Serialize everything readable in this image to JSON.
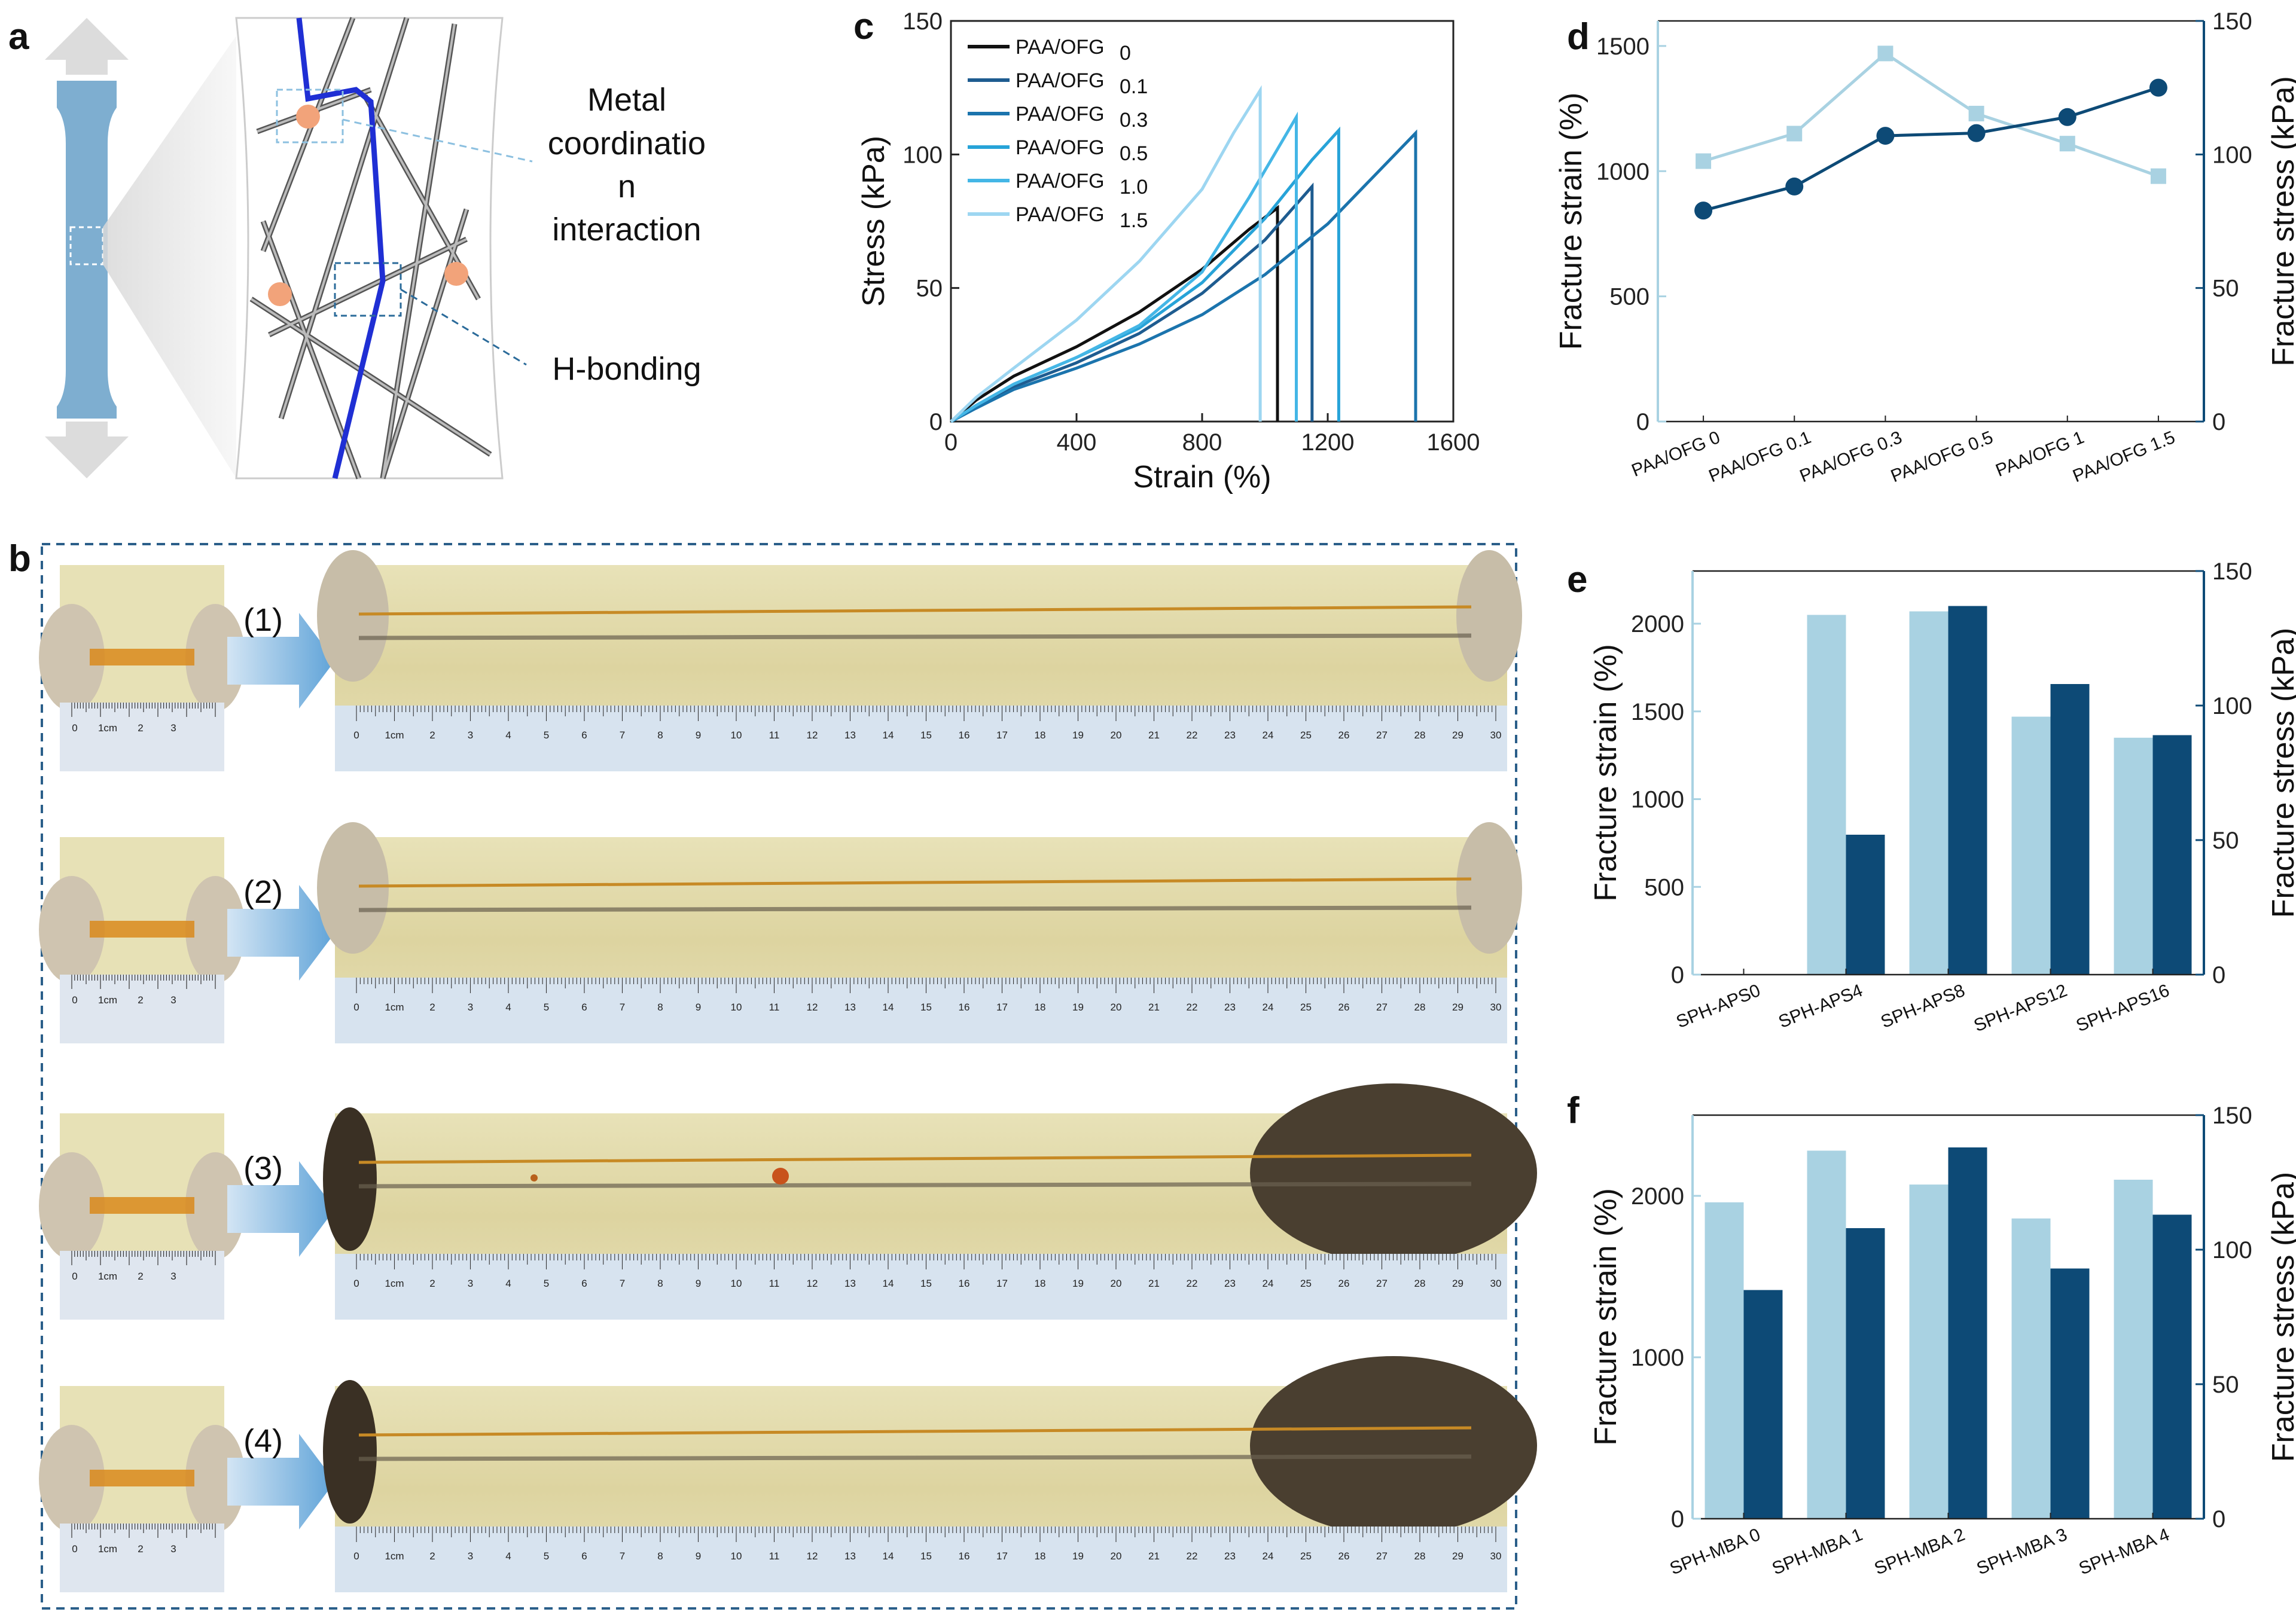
{
  "panels": {
    "a": {
      "label": "a",
      "annotation_metal": [
        "Metal",
        "coordinatio",
        "n",
        "interaction"
      ],
      "annotation_h": "H-bonding"
    },
    "b": {
      "label": "b",
      "steps": [
        "(1)",
        "(2)",
        "(3)",
        "(4)"
      ],
      "ruler_unit": "1cm",
      "ruler_small": [
        "0",
        "1cm",
        "2",
        "3"
      ],
      "ruler_big": [
        "0",
        "1cm",
        "2",
        "3",
        "4",
        "5",
        "6",
        "7",
        "8",
        "9",
        "10",
        "11",
        "12",
        "13",
        "14",
        "15",
        "16",
        "17",
        "18",
        "19",
        "20",
        "21",
        "22",
        "23",
        "24",
        "25",
        "26",
        "27",
        "28",
        "29",
        "30"
      ]
    },
    "c": {
      "label": "c"
    },
    "d": {
      "label": "d"
    },
    "e": {
      "label": "e"
    },
    "f": {
      "label": "f"
    }
  },
  "colors": {
    "light": "#a9d2e2",
    "dark": "#0d4a76",
    "black": "#111111",
    "curve_01": "#1e5c90",
    "curve_03": "#1b74ad",
    "curve_05": "#27a3d8",
    "curve_10": "#44b6e6",
    "curve_15": "#9dd6f1",
    "chain_blue": "#1f2fd4",
    "arrow_grad_start": "#d3e5f4",
    "arrow_grad_end": "#5fa3d8"
  },
  "chart_data": [
    {
      "id": "c",
      "type": "line",
      "xlabel": "Strain (%)",
      "ylabel": "Stress (kPa)",
      "xlim": [
        0,
        1600
      ],
      "ylim": [
        0,
        150
      ],
      "xticks": [
        0,
        400,
        800,
        1200,
        1600
      ],
      "yticks": [
        0,
        50,
        100,
        150
      ],
      "legend_position": "top-left",
      "series": [
        {
          "name": "PAA/OFG",
          "sub": "0",
          "color_key": "black",
          "x": [
            0,
            80,
            200,
            400,
            600,
            800,
            950,
            1040,
            1040
          ],
          "y": [
            0,
            8,
            17,
            28,
            41,
            57,
            72,
            80,
            0
          ]
        },
        {
          "name": "PAA/OFG",
          "sub": "0.1",
          "color_key": "curve_01",
          "x": [
            0,
            80,
            200,
            400,
            600,
            800,
            1000,
            1150,
            1150
          ],
          "y": [
            0,
            6,
            13,
            22,
            33,
            48,
            68,
            88,
            0
          ]
        },
        {
          "name": "PAA/OFG",
          "sub": "0.3",
          "color_key": "curve_03",
          "x": [
            0,
            80,
            200,
            400,
            600,
            800,
            1000,
            1200,
            1480,
            1480
          ],
          "y": [
            0,
            5,
            12,
            20,
            29,
            40,
            55,
            74,
            108,
            0
          ]
        },
        {
          "name": "PAA/OFG",
          "sub": "0.5",
          "color_key": "curve_05",
          "x": [
            0,
            80,
            200,
            400,
            600,
            800,
            1000,
            1150,
            1235,
            1235
          ],
          "y": [
            0,
            6,
            14,
            24,
            35,
            52,
            76,
            98,
            109,
            0
          ]
        },
        {
          "name": "PAA/OFG",
          "sub": "1.0",
          "color_key": "curve_10",
          "x": [
            0,
            80,
            200,
            400,
            600,
            800,
            950,
            1100,
            1100
          ],
          "y": [
            0,
            6,
            14,
            24,
            36,
            56,
            84,
            114,
            0
          ]
        },
        {
          "name": "PAA/OFG",
          "sub": "1.5",
          "color_key": "curve_15",
          "x": [
            0,
            80,
            200,
            400,
            600,
            800,
            900,
            985,
            985
          ],
          "y": [
            0,
            9,
            20,
            38,
            60,
            87,
            108,
            124,
            0
          ]
        }
      ]
    },
    {
      "id": "d",
      "type": "line",
      "categories": [
        "PAA/OFG 0",
        "PAA/OFG 0.1",
        "PAA/OFG 0.3",
        "PAA/OFG 0.5",
        "PAA/OFG 1",
        "PAA/OFG 1.5"
      ],
      "ylabel": "Fracture strain (%)",
      "y2label": "Fracture stress (kPa)",
      "ylim": [
        0,
        1600
      ],
      "y2lim": [
        0,
        150
      ],
      "yticks": [
        0,
        500,
        1000,
        1500
      ],
      "y2ticks": [
        0,
        50,
        100,
        150
      ],
      "series": [
        {
          "name": "Fracture strain",
          "axis": "left",
          "marker": "square",
          "color_key": "light",
          "values": [
            1040,
            1150,
            1470,
            1230,
            1110,
            980
          ]
        },
        {
          "name": "Fracture stress",
          "axis": "right",
          "marker": "circle",
          "color_key": "dark",
          "values": [
            79,
            88,
            107,
            108,
            114,
            125
          ]
        }
      ]
    },
    {
      "id": "e",
      "type": "bar",
      "categories": [
        "SPH-APS0",
        "SPH-APS4",
        "SPH-APS8",
        "SPH-APS12",
        "SPH-APS16"
      ],
      "ylabel": "Fracture strain (%)",
      "y2label": "Fracture stress (kPa)",
      "ylim": [
        0,
        2300
      ],
      "y2lim": [
        0,
        150
      ],
      "yticks": [
        0,
        500,
        1000,
        1500,
        2000
      ],
      "y2ticks": [
        0,
        50,
        100,
        150
      ],
      "series": [
        {
          "name": "Fracture strain",
          "axis": "left",
          "color_key": "light",
          "values": [
            0,
            2050,
            2070,
            1470,
            1350
          ]
        },
        {
          "name": "Fracture stress",
          "axis": "right",
          "color_key": "dark",
          "values": [
            0,
            52,
            137,
            108,
            89
          ]
        }
      ]
    },
    {
      "id": "f",
      "type": "bar",
      "categories": [
        "SPH-MBA 0",
        "SPH-MBA 1",
        "SPH-MBA 2",
        "SPH-MBA 3",
        "SPH-MBA 4"
      ],
      "ylabel": "Fracture strain (%)",
      "y2label": "Fracture stress (kPa)",
      "ylim": [
        0,
        2500
      ],
      "y2lim": [
        0,
        150
      ],
      "yticks": [
        0,
        1000,
        2000
      ],
      "y2ticks": [
        0,
        50,
        100,
        150
      ],
      "series": [
        {
          "name": "Fracture strain",
          "axis": "left",
          "color_key": "light",
          "values": [
            1960,
            2280,
            2070,
            1860,
            2100
          ]
        },
        {
          "name": "Fracture stress",
          "axis": "right",
          "color_key": "dark",
          "values": [
            85,
            108,
            138,
            93,
            113
          ]
        }
      ]
    }
  ]
}
